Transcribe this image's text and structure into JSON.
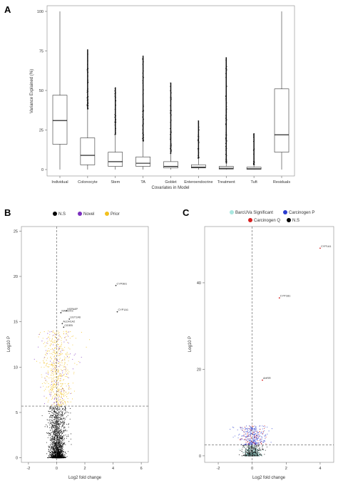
{
  "panels": {
    "a": {
      "label": "A",
      "chart_data": {
        "type": "box",
        "title": "",
        "xlabel": "Covariates in Model",
        "ylabel": "Variance Explained (%)",
        "ylim": [
          0,
          100
        ],
        "yticks": [
          0,
          25,
          50,
          75,
          100
        ],
        "categories": [
          "Individual",
          "Colonocyte",
          "Stem",
          "TA",
          "Goblet",
          "Enteroendocrine",
          "Treatment",
          "Tuft",
          "Residuals"
        ],
        "boxes": [
          {
            "min": 0,
            "q1": 16,
            "median": 31,
            "q3": 47,
            "max": 100,
            "outlier_max": 100
          },
          {
            "min": 0,
            "q1": 3,
            "median": 9,
            "q3": 20,
            "max": 38,
            "outlier_max": 76
          },
          {
            "min": 0,
            "q1": 2,
            "median": 5,
            "q3": 11,
            "max": 22,
            "outlier_max": 52
          },
          {
            "min": 0,
            "q1": 2,
            "median": 4,
            "q3": 8,
            "max": 18,
            "outlier_max": 72
          },
          {
            "min": 0,
            "q1": 1,
            "median": 2,
            "q3": 5,
            "max": 10,
            "outlier_max": 55
          },
          {
            "min": 0,
            "q1": 1,
            "median": 1.5,
            "q3": 3,
            "max": 7,
            "outlier_max": 31
          },
          {
            "min": 0,
            "q1": 0.3,
            "median": 0.8,
            "q3": 2,
            "max": 4,
            "outlier_max": 71
          },
          {
            "min": 0,
            "q1": 0.2,
            "median": 0.5,
            "q3": 1.5,
            "max": 3,
            "outlier_max": 23
          },
          {
            "min": 0,
            "q1": 11,
            "median": 22,
            "q3": 51,
            "max": 100,
            "outlier_max": 100
          }
        ]
      }
    },
    "b": {
      "label": "B",
      "legend": [
        {
          "label": "N.S",
          "color": "#000000"
        },
        {
          "label": "Novel",
          "color": "#7b2fbe"
        },
        {
          "label": "Prior",
          "color": "#f2c01e"
        }
      ],
      "chart_data": {
        "type": "scatter",
        "xlabel": "Log2 fold change",
        "ylabel": "Log10 P",
        "xlim": [
          -2.5,
          6.5
        ],
        "ylim": [
          -0.5,
          25.5
        ],
        "xticks": [
          -2,
          0,
          2,
          4,
          6
        ],
        "yticks": [
          0,
          5,
          10,
          15,
          20,
          25
        ],
        "threshold_x": 0,
        "threshold_y": 5.7,
        "labeled_points": [
          {
            "gene": "CYP3B1",
            "x": 4.2,
            "y": 19.0
          },
          {
            "gene": "CYP1A1",
            "x": 4.3,
            "y": 16.1
          },
          {
            "gene": "HSPA8P",
            "x": 0.7,
            "y": 16.2
          },
          {
            "gene": "MARCKS",
            "x": 0.3,
            "y": 16.0
          },
          {
            "gene": "UGT1A6",
            "x": 0.9,
            "y": 15.3
          },
          {
            "gene": "ALDH1A2",
            "x": 0.4,
            "y": 14.8
          },
          {
            "gene": "CIDEB",
            "x": 0.5,
            "y": 14.4
          }
        ]
      }
    },
    "c": {
      "label": "C",
      "legend": [
        {
          "label": "BarcUVa Significant",
          "color": "#a9e7e0"
        },
        {
          "label": "Carcinogen P",
          "color": "#2a3ccf"
        },
        {
          "label": "Carcinogen Q",
          "color": "#d62020"
        },
        {
          "label": "N.S",
          "color": "#000000"
        }
      ],
      "chart_data": {
        "type": "scatter",
        "xlabel": "Log2 fold change",
        "ylabel": "Log10 P",
        "xlim": [
          -2.8,
          4.8
        ],
        "ylim": [
          -1.5,
          53
        ],
        "xticks": [
          -2,
          0,
          2,
          4
        ],
        "yticks": [
          0,
          20,
          40
        ],
        "threshold_x": 0,
        "threshold_y": 2.5,
        "labeled_points": [
          {
            "gene": "CYP1A1",
            "x": 4.0,
            "y": 48.0
          },
          {
            "gene": "CYP1B1",
            "x": 1.6,
            "y": 36.5
          },
          {
            "gene": "AHRR",
            "x": 0.6,
            "y": 17.5
          }
        ]
      }
    }
  }
}
